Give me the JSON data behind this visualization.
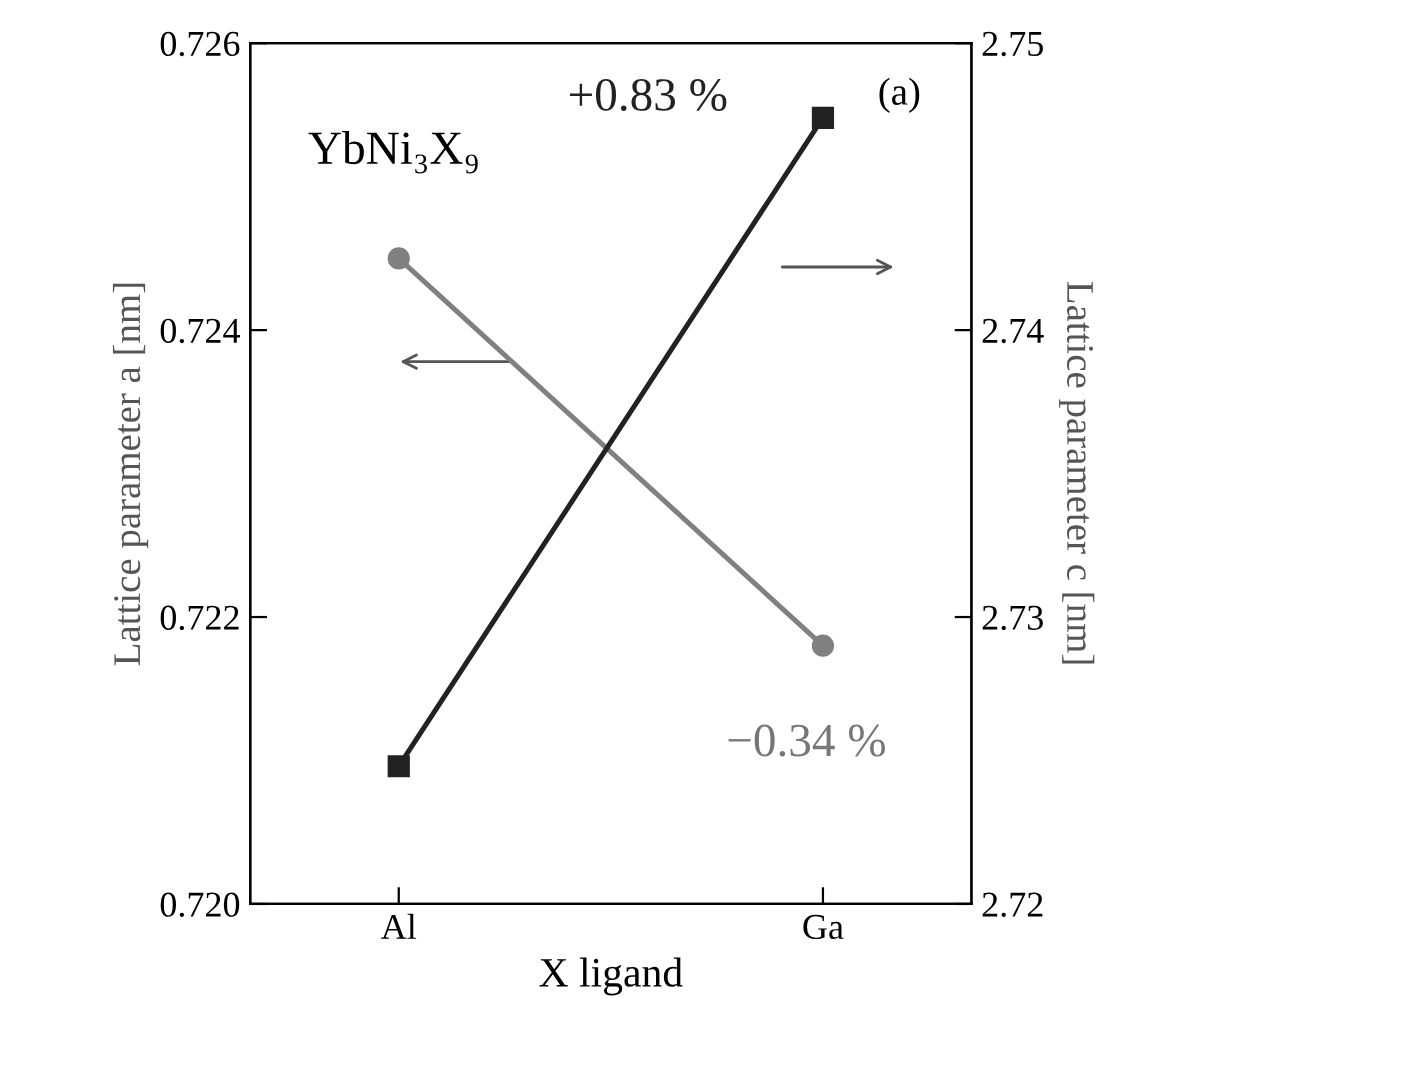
{
  "chart_data": {
    "type": "line",
    "xlabel": "X ligand",
    "ylabel": "Lattice parameter a [nm]",
    "y2label": "Lattice parameter c [nm]",
    "categories": [
      "Al",
      "Ga"
    ],
    "series": [
      {
        "color": "#808080",
        "values": [
          0.7245,
          0.7218
        ],
        "marker": "circle"
      },
      {
        "color": "#222222",
        "values": [
          2.7248,
          2.7474
        ],
        "marker": "square",
        "axis": "y2"
      }
    ],
    "ylim": [
      0.72,
      0.726
    ],
    "yticks": [
      {
        "value": 0.72,
        "label": "0.720"
      },
      {
        "value": 0.722,
        "label": "0.722"
      },
      {
        "value": 0.724,
        "label": "0.724"
      },
      {
        "value": 0.726,
        "label": "0.726"
      }
    ],
    "y2lim": [
      2.72,
      2.75
    ],
    "y2ticks": [
      2.72,
      2.73,
      2.74,
      2.75
    ],
    "annotations": [
      "YbNi₃X₉",
      "(a)",
      "+0.83 %",
      "−0.34 %"
    ],
    "grid": false,
    "legend": false
  }
}
